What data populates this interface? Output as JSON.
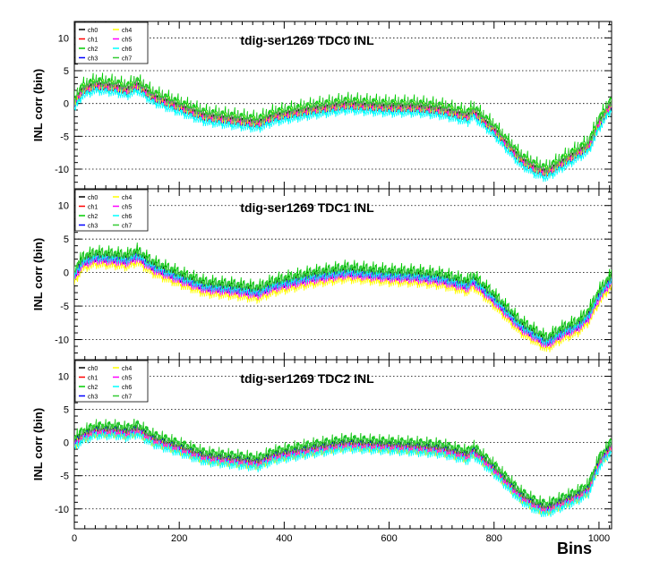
{
  "colors": {
    "ch0": "#000000",
    "ch1": "#ff0000",
    "ch2": "#00cc00",
    "ch3": "#0000ff",
    "ch4": "#ffff00",
    "ch5": "#ff00ff",
    "ch6": "#00ffff",
    "ch7": "#33cc33"
  },
  "chart_data": [
    {
      "type": "line",
      "title": "tdig-ser1269 TDC0 INL",
      "ylabel": "INL corr (bin)",
      "xlabel": "",
      "xlim": [
        0,
        1024
      ],
      "ylim": [
        -13,
        12.5
      ],
      "yticks": [
        -10,
        -5,
        0,
        5,
        10
      ],
      "xticks": [
        0,
        200,
        400,
        600,
        800,
        1000
      ],
      "grid": "horizontal-dotted",
      "legend": "top-left",
      "series": [
        {
          "name": "ch0",
          "color_key": "ch0",
          "offset": 0.0
        },
        {
          "name": "ch1",
          "color_key": "ch1",
          "offset": 0.1
        },
        {
          "name": "ch2",
          "color_key": "ch2",
          "offset": 0.9
        },
        {
          "name": "ch3",
          "color_key": "ch3",
          "offset": -0.3
        },
        {
          "name": "ch4",
          "color_key": "ch4",
          "offset": -0.1
        },
        {
          "name": "ch5",
          "color_key": "ch5",
          "offset": 0.2
        },
        {
          "name": "ch6",
          "color_key": "ch6",
          "offset": -0.8
        },
        {
          "name": "ch7",
          "color_key": "ch7",
          "offset": 0.5
        }
      ],
      "profile": [
        [
          0,
          0
        ],
        [
          15,
          2
        ],
        [
          40,
          2.8
        ],
        [
          80,
          2.5
        ],
        [
          100,
          2.0
        ],
        [
          120,
          2.8
        ],
        [
          150,
          1.0
        ],
        [
          200,
          -0.5
        ],
        [
          250,
          -2.0
        ],
        [
          300,
          -2.5
        ],
        [
          350,
          -3.0
        ],
        [
          380,
          -2.0
        ],
        [
          450,
          -1.0
        ],
        [
          520,
          -0.2
        ],
        [
          600,
          -0.6
        ],
        [
          650,
          -0.6
        ],
        [
          700,
          -1.0
        ],
        [
          750,
          -2.0
        ],
        [
          760,
          -1.2
        ],
        [
          800,
          -4.0
        ],
        [
          850,
          -8.5
        ],
        [
          880,
          -10.0
        ],
        [
          900,
          -10.5
        ],
        [
          930,
          -9.0
        ],
        [
          960,
          -7.5
        ],
        [
          980,
          -6.5
        ],
        [
          1000,
          -3.0
        ],
        [
          1024,
          0.0
        ]
      ]
    },
    {
      "type": "line",
      "title": "tdig-ser1269 TDC1 INL",
      "ylabel": "INL corr (bin)",
      "xlabel": "",
      "xlim": [
        0,
        1024
      ],
      "ylim": [
        -13,
        12.5
      ],
      "yticks": [
        -10,
        -5,
        0,
        5,
        10
      ],
      "xticks": [
        0,
        200,
        400,
        600,
        800,
        1000
      ],
      "grid": "horizontal-dotted",
      "legend": "top-left",
      "series": [
        {
          "name": "ch0",
          "color_key": "ch0",
          "offset": 0.5
        },
        {
          "name": "ch1",
          "color_key": "ch1",
          "offset": 0.0
        },
        {
          "name": "ch2",
          "color_key": "ch2",
          "offset": 1.0
        },
        {
          "name": "ch3",
          "color_key": "ch3",
          "offset": 0.2
        },
        {
          "name": "ch4",
          "color_key": "ch4",
          "offset": -0.9
        },
        {
          "name": "ch5",
          "color_key": "ch5",
          "offset": -0.3
        },
        {
          "name": "ch6",
          "color_key": "ch6",
          "offset": 0.1
        },
        {
          "name": "ch7",
          "color_key": "ch7",
          "offset": 0.7
        }
      ],
      "profile": [
        [
          0,
          -0.5
        ],
        [
          15,
          1.5
        ],
        [
          40,
          2.2
        ],
        [
          80,
          2.0
        ],
        [
          100,
          1.8
        ],
        [
          120,
          2.5
        ],
        [
          150,
          0.8
        ],
        [
          200,
          -0.8
        ],
        [
          250,
          -2.2
        ],
        [
          300,
          -2.5
        ],
        [
          350,
          -3.0
        ],
        [
          380,
          -2.0
        ],
        [
          450,
          -0.8
        ],
        [
          520,
          0.0
        ],
        [
          600,
          -0.5
        ],
        [
          650,
          -0.6
        ],
        [
          700,
          -1.0
        ],
        [
          750,
          -2.0
        ],
        [
          760,
          -1.2
        ],
        [
          800,
          -4.0
        ],
        [
          850,
          -8.0
        ],
        [
          880,
          -9.5
        ],
        [
          900,
          -10.5
        ],
        [
          930,
          -9.0
        ],
        [
          960,
          -8.0
        ],
        [
          980,
          -6.5
        ],
        [
          1000,
          -3.5
        ],
        [
          1024,
          -1.0
        ]
      ]
    },
    {
      "type": "line",
      "title": "tdig-ser1269 TDC2 INL",
      "ylabel": "INL corr (bin)",
      "xlabel": "Bins",
      "xlim": [
        0,
        1024
      ],
      "ylim": [
        -13,
        12.5
      ],
      "yticks": [
        -10,
        -5,
        0,
        5,
        10
      ],
      "xticks": [
        0,
        200,
        400,
        600,
        800,
        1000
      ],
      "grid": "horizontal-dotted",
      "legend": "top-left",
      "series": [
        {
          "name": "ch0",
          "color_key": "ch0",
          "offset": 0.2
        },
        {
          "name": "ch1",
          "color_key": "ch1",
          "offset": 0.0
        },
        {
          "name": "ch2",
          "color_key": "ch2",
          "offset": 0.9
        },
        {
          "name": "ch3",
          "color_key": "ch3",
          "offset": 0.3
        },
        {
          "name": "ch4",
          "color_key": "ch4",
          "offset": -0.4
        },
        {
          "name": "ch5",
          "color_key": "ch5",
          "offset": -0.2
        },
        {
          "name": "ch6",
          "color_key": "ch6",
          "offset": -0.7
        },
        {
          "name": "ch7",
          "color_key": "ch7",
          "offset": 0.6
        }
      ],
      "profile": [
        [
          0,
          0
        ],
        [
          15,
          1.0
        ],
        [
          40,
          1.8
        ],
        [
          80,
          1.8
        ],
        [
          100,
          1.5
        ],
        [
          120,
          2.0
        ],
        [
          150,
          0.5
        ],
        [
          200,
          -0.8
        ],
        [
          250,
          -2.2
        ],
        [
          300,
          -2.6
        ],
        [
          350,
          -3.0
        ],
        [
          380,
          -2.0
        ],
        [
          450,
          -1.0
        ],
        [
          520,
          -0.2
        ],
        [
          600,
          -0.5
        ],
        [
          650,
          -0.7
        ],
        [
          700,
          -1.0
        ],
        [
          750,
          -2.0
        ],
        [
          760,
          -1.2
        ],
        [
          800,
          -4.0
        ],
        [
          850,
          -8.0
        ],
        [
          880,
          -9.5
        ],
        [
          900,
          -10.0
        ],
        [
          930,
          -9.0
        ],
        [
          960,
          -8.0
        ],
        [
          980,
          -7.0
        ],
        [
          1000,
          -3.0
        ],
        [
          1024,
          -0.5
        ]
      ]
    }
  ]
}
